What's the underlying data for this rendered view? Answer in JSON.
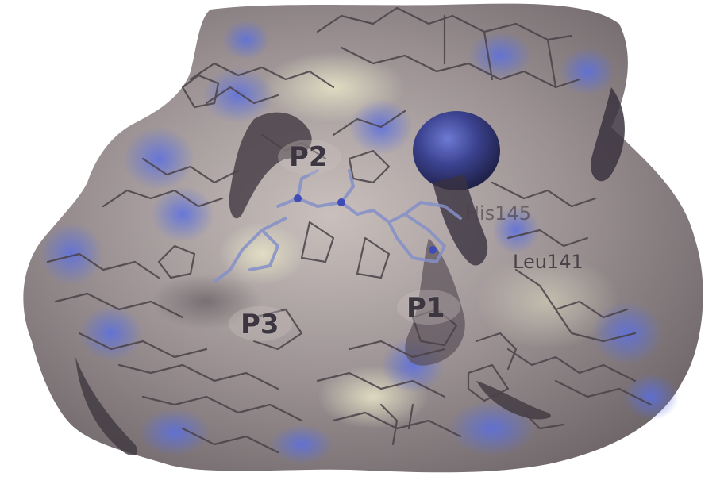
{
  "labels": {
    "p1": "P1",
    "p2": "P2",
    "p3": "P3",
    "his": "His145",
    "leu": "Leu141"
  },
  "colors": {
    "surface": "#8f8587",
    "surface_light": "#c9c2bf",
    "surface_dark": "#4e464d",
    "electropositive": "#4e5fc8",
    "ligand": "#8a95cf",
    "stick": "#4a4248",
    "background": "#ffffff"
  }
}
